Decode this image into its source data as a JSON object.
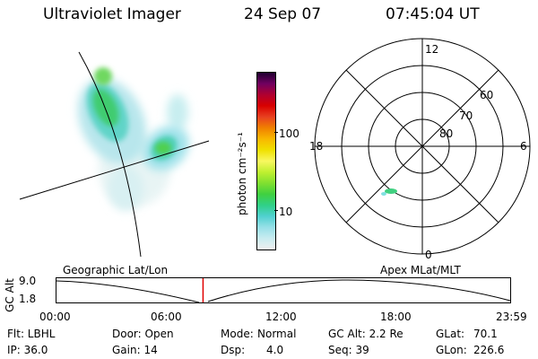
{
  "header": {
    "instrument": "Ultraviolet Imager",
    "date": "24 Sep 07",
    "time": "07:45:04 UT"
  },
  "colorbar": {
    "unit_label": "photon cm⁻²s⁻¹",
    "ticks": [
      "100",
      "10"
    ],
    "scale": "log",
    "colors": [
      "#f0f0f0",
      "#c8ecf0",
      "#98e0e8",
      "#50d0d0",
      "#30d088",
      "#40d040",
      "#80e030",
      "#c0f030",
      "#f8f860",
      "#f0e000",
      "#f8b800",
      "#f08000",
      "#e84020",
      "#d80000",
      "#b00030",
      "#700060",
      "#200030"
    ]
  },
  "geo_panel": {
    "label": "Geographic Lat/Lon"
  },
  "polar_panel": {
    "label": "Apex MLat/MLT",
    "mlt_labels": {
      "top": "12",
      "bottom": "0",
      "left": "18",
      "right": "6"
    },
    "lat_labels": [
      "60",
      "70",
      "80"
    ]
  },
  "timeline": {
    "axis_label": "GC Alt",
    "y_ticks": [
      "9.0",
      "1.8"
    ],
    "x_ticks": [
      "00:00",
      "06:00",
      "12:00",
      "18:00",
      "23:59"
    ],
    "current_time_fraction": 0.323,
    "marker_color": "#e00000"
  },
  "footer": {
    "row1": {
      "filter": "Flt: LBHL",
      "door": "Door: Open",
      "mode_key": "Mode:",
      "mode_val": "Normal",
      "gc_alt": "GC Alt: 2.2 Re",
      "glat_key": "GLat:",
      "glat_val": "70.1"
    },
    "row2": {
      "ip": "IP: 36.0",
      "gain": "Gain: 14",
      "dsp_key": "Dsp:",
      "dsp_val": "4.0",
      "seq": "Seq: 39",
      "glon_key": "GLon:",
      "glon_val": "226.6"
    }
  }
}
